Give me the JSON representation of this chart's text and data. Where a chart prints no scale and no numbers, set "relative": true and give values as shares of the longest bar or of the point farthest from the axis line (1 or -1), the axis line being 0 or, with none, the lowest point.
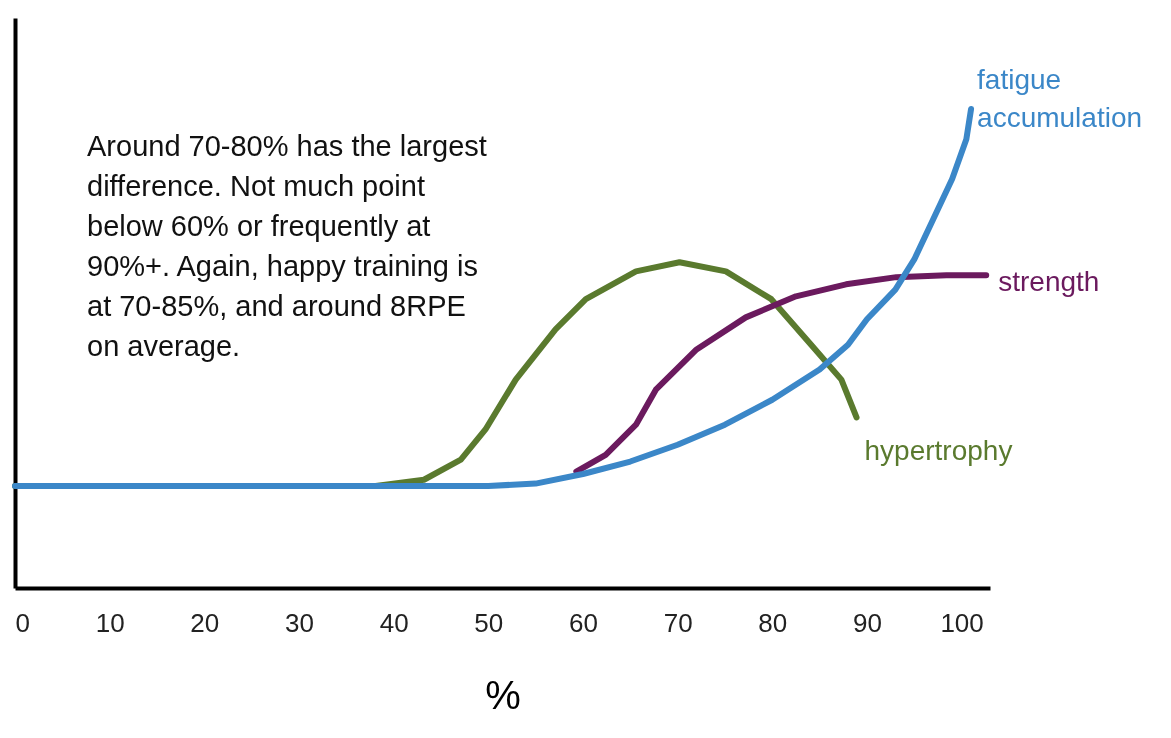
{
  "chart_data": {
    "type": "line",
    "relative": true,
    "xlabel": "%",
    "xlim": [
      0,
      103
    ],
    "xticks": [
      0,
      10,
      20,
      30,
      40,
      50,
      60,
      70,
      80,
      90,
      100
    ],
    "annotations": [
      "Around 70-80% has the largest\ndifference. Not much point\nbelow 60% or frequently at\n90%+. Again, happy training is\nat 70-85%, and around 8RPE\non average."
    ],
    "series": [
      {
        "name": "hypertrophy",
        "color": "#5a7a2e",
        "x": [
          0,
          38.1,
          43.2,
          47.1,
          49.7,
          52.9,
          57.1,
          60.3,
          65.6,
          70.2,
          75.1,
          79.9,
          84.1,
          87.3,
          88.9
        ],
        "values": [
          0.213,
          0.213,
          0.226,
          0.268,
          0.331,
          0.435,
          0.54,
          0.603,
          0.661,
          0.68,
          0.661,
          0.603,
          0.508,
          0.435,
          0.356
        ]
      },
      {
        "name": "strength",
        "color": "#6b1a5e",
        "x": [
          59.3,
          62.4,
          65.6,
          67.7,
          72,
          77.2,
          82.5,
          87.8,
          93.1,
          98.4,
          102.6
        ],
        "values": [
          0.243,
          0.278,
          0.341,
          0.414,
          0.498,
          0.565,
          0.609,
          0.634,
          0.649,
          0.653,
          0.653
        ]
      },
      {
        "name": "fatigue accumulation",
        "color": "#3b87c8",
        "x": [
          0,
          50,
          55,
          60,
          65,
          70,
          75,
          80,
          85,
          88,
          90,
          93,
          95,
          97,
          99,
          100.5,
          101
        ],
        "values": [
          0.213,
          0.213,
          0.218,
          0.238,
          0.264,
          0.299,
          0.341,
          0.393,
          0.456,
          0.508,
          0.561,
          0.623,
          0.686,
          0.77,
          0.854,
          0.937,
          1.0
        ]
      }
    ]
  }
}
